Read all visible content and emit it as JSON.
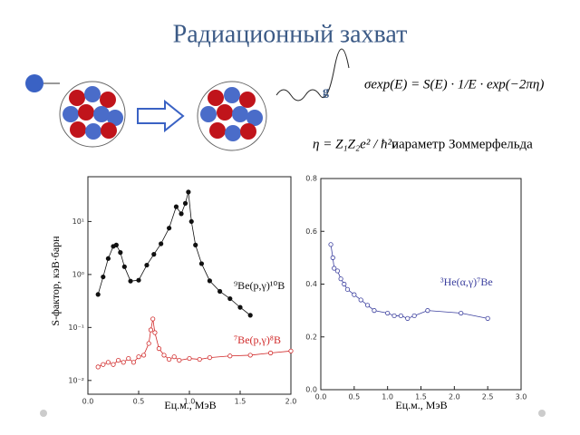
{
  "slide_title": "Радиационный захват",
  "photon_label": "g",
  "cross_section_formula": "σexp(E) = S(E) · 1/E · exp(−2πη)",
  "eta_formula": "η = Z₁Z₂e² / ħ²v",
  "eta_caption": "параметр Зоммерфельда",
  "chart_data": [
    {
      "type": "scatter",
      "log_y": true,
      "grid": false,
      "xlabel": "Eц.м., МэВ",
      "ylabel": "S-фактор, кэВ·барн",
      "xlim": [
        0,
        2
      ],
      "ylim": [
        0.0055,
        70
      ],
      "xticks": [
        {
          "value": 0,
          "label": "0.0"
        },
        0.5,
        {
          "value": 1,
          "label": "1.0"
        },
        1.5,
        {
          "value": 2,
          "label": "2.0"
        }
      ],
      "yticks": [
        {
          "value": 0.01,
          "label": "10⁻²"
        },
        {
          "value": 0.1,
          "label": "10⁻¹"
        },
        {
          "value": 1,
          "label": "10⁰"
        },
        {
          "value": 10,
          "label": "10¹"
        }
      ],
      "series": [
        {
          "name": "⁹Be(p,γ)¹⁰B",
          "color": "#111111",
          "filled": true,
          "x": [
            0.1,
            0.15,
            0.2,
            0.25,
            0.28,
            0.32,
            0.36,
            0.42,
            0.5,
            0.58,
            0.65,
            0.72,
            0.8,
            0.87,
            0.92,
            0.96,
            0.99,
            1.02,
            1.06,
            1.12,
            1.2,
            1.3,
            1.4,
            1.5,
            1.6
          ],
          "values": [
            0.42,
            0.9,
            2.0,
            3.4,
            3.6,
            2.6,
            1.4,
            0.75,
            0.78,
            1.5,
            2.4,
            3.8,
            7.5,
            19,
            14,
            22,
            36,
            10,
            3.6,
            1.6,
            0.76,
            0.48,
            0.35,
            0.24,
            0.17
          ]
        },
        {
          "name": "⁷Be(p,γ)⁸B",
          "color": "#d12a2a",
          "filled": false,
          "x": [
            0.1,
            0.15,
            0.2,
            0.25,
            0.3,
            0.35,
            0.4,
            0.45,
            0.5,
            0.55,
            0.6,
            0.62,
            0.64,
            0.66,
            0.7,
            0.75,
            0.8,
            0.85,
            0.9,
            1.0,
            1.1,
            1.2,
            1.4,
            1.6,
            1.8,
            2.0
          ],
          "values": [
            0.018,
            0.02,
            0.022,
            0.02,
            0.024,
            0.022,
            0.026,
            0.022,
            0.028,
            0.03,
            0.05,
            0.09,
            0.145,
            0.08,
            0.04,
            0.03,
            0.025,
            0.028,
            0.024,
            0.026,
            0.025,
            0.027,
            0.029,
            0.03,
            0.033,
            0.036
          ]
        }
      ]
    },
    {
      "type": "scatter",
      "log_y": false,
      "grid": false,
      "xlabel": "Eц.м., МэВ",
      "xlim": [
        0,
        3
      ],
      "ylim": [
        0,
        0.8
      ],
      "xticks": [
        {
          "value": 0,
          "label": "0.0"
        },
        0.5,
        {
          "value": 1,
          "label": "1.0"
        },
        1.5,
        {
          "value": 2,
          "label": "2.0"
        },
        2.5,
        {
          "value": 3,
          "label": "3.0"
        }
      ],
      "yticks": [
        {
          "value": 0,
          "label": "0.0"
        },
        0.2,
        0.4,
        0.6,
        0.8
      ],
      "series": [
        {
          "name": "³He(α,γ)⁷Be",
          "color": "#3b3f9e",
          "filled": false,
          "x": [
            0.15,
            0.18,
            0.2,
            0.25,
            0.3,
            0.35,
            0.4,
            0.5,
            0.6,
            0.7,
            0.8,
            1.0,
            1.1,
            1.2,
            1.3,
            1.4,
            1.6,
            2.1,
            2.5
          ],
          "values": [
            0.55,
            0.5,
            0.46,
            0.45,
            0.42,
            0.4,
            0.38,
            0.36,
            0.34,
            0.32,
            0.3,
            0.29,
            0.28,
            0.28,
            0.27,
            0.28,
            0.3,
            0.29,
            0.27
          ]
        }
      ]
    }
  ]
}
